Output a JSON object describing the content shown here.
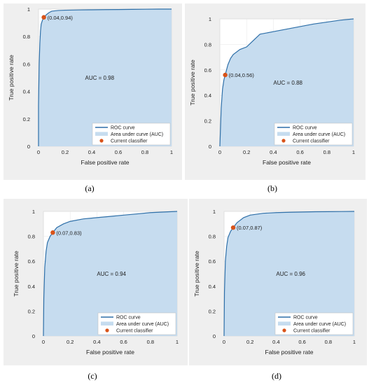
{
  "chart_data": [
    {
      "type": "area",
      "panel_label": "(a)",
      "xlabel": "False positive rate",
      "ylabel": "True positive rate",
      "xlim": [
        0,
        1
      ],
      "ylim": [
        0,
        1
      ],
      "xticks": [
        "0",
        "0.2",
        "0.4",
        "0.6",
        "0.8",
        "1"
      ],
      "yticks": [
        "0",
        "0.2",
        "0.4",
        "0.6",
        "0.8",
        "1"
      ],
      "grid": true,
      "legend_placement": "bottom-right",
      "legend": [
        "ROC curve",
        "Area under curve (AUC)",
        "Current classifier"
      ],
      "auc_label": "AUC = 0.98",
      "current_classifier": {
        "x": 0.04,
        "y": 0.94,
        "label": "(0.04,0.94)"
      },
      "roc_curve": {
        "x": [
          0,
          0,
          0.005,
          0.01,
          0.015,
          0.02,
          0.03,
          0.04,
          0.06,
          0.08,
          0.1,
          0.15,
          0.2,
          0.3,
          0.4,
          0.5,
          0.6,
          0.7,
          0.8,
          0.9,
          1.0
        ],
        "y": [
          0,
          0.3,
          0.6,
          0.75,
          0.84,
          0.89,
          0.92,
          0.94,
          0.96,
          0.975,
          0.985,
          0.99,
          0.992,
          0.994,
          0.995,
          0.996,
          0.997,
          0.998,
          0.999,
          1.0,
          1.0
        ]
      }
    },
    {
      "type": "area",
      "panel_label": "(b)",
      "xlabel": "False positive rate",
      "ylabel": "True positive rate",
      "xlim": [
        0,
        1
      ],
      "ylim": [
        0,
        1
      ],
      "xticks": [
        "0",
        "0.2",
        "0.4",
        "0.6",
        "0.8",
        "1"
      ],
      "yticks": [
        "0",
        "0.2",
        "0.4",
        "0.6",
        "0.8",
        "1"
      ],
      "grid": true,
      "legend_placement": "bottom-right",
      "legend": [
        "ROC curve",
        "Area under curve (AUC)",
        "Current classifier"
      ],
      "auc_label": "AUC = 0.88",
      "current_classifier": {
        "x": 0.04,
        "y": 0.56,
        "label": "(0.04,0.56)"
      },
      "roc_curve": {
        "x": [
          0,
          0.005,
          0.01,
          0.02,
          0.03,
          0.04,
          0.06,
          0.08,
          0.1,
          0.15,
          0.2,
          0.25,
          0.3,
          0.4,
          0.5,
          0.6,
          0.7,
          0.8,
          0.9,
          1.0
        ],
        "y": [
          0,
          0.15,
          0.3,
          0.45,
          0.52,
          0.56,
          0.64,
          0.69,
          0.72,
          0.76,
          0.78,
          0.83,
          0.88,
          0.9,
          0.92,
          0.94,
          0.96,
          0.975,
          0.99,
          1.0
        ]
      }
    },
    {
      "type": "area",
      "panel_label": "(c)",
      "xlabel": "False positive rate",
      "ylabel": "True positive rate",
      "xlim": [
        0,
        1
      ],
      "ylim": [
        0,
        1
      ],
      "xticks": [
        "0",
        "0.2",
        "0.4",
        "0.6",
        "0.8",
        "1"
      ],
      "yticks": [
        "0",
        "0.2",
        "0.4",
        "0.6",
        "0.8",
        "1"
      ],
      "grid": true,
      "legend_placement": "bottom-right",
      "legend": [
        "ROC curve",
        "Area under curve (AUC)",
        "Current classifier"
      ],
      "auc_label": "AUC = 0.94",
      "current_classifier": {
        "x": 0.07,
        "y": 0.83,
        "label": "(0.07,0.83)"
      },
      "roc_curve": {
        "x": [
          0,
          0.003,
          0.01,
          0.02,
          0.03,
          0.05,
          0.07,
          0.1,
          0.15,
          0.2,
          0.3,
          0.4,
          0.5,
          0.6,
          0.7,
          0.8,
          0.9,
          1.0
        ],
        "y": [
          0,
          0.3,
          0.55,
          0.68,
          0.75,
          0.8,
          0.83,
          0.87,
          0.9,
          0.92,
          0.94,
          0.95,
          0.96,
          0.97,
          0.98,
          0.99,
          0.995,
          1.0
        ]
      }
    },
    {
      "type": "area",
      "panel_label": "(d)",
      "xlabel": "False positive rate",
      "ylabel": "True positive rate",
      "xlim": [
        0,
        1
      ],
      "ylim": [
        0,
        1
      ],
      "xticks": [
        "0",
        "0.2",
        "0.4",
        "0.6",
        "0.8",
        "1"
      ],
      "yticks": [
        "0",
        "0.2",
        "0.4",
        "0.6",
        "0.8",
        "1"
      ],
      "grid": true,
      "legend_placement": "bottom-right",
      "legend": [
        "ROC curve",
        "Area under curve (AUC)",
        "Current classifier"
      ],
      "auc_label": "AUC = 0.96",
      "current_classifier": {
        "x": 0.07,
        "y": 0.87,
        "label": "(0.07,0.87)"
      },
      "roc_curve": {
        "x": [
          0,
          0.003,
          0.01,
          0.02,
          0.03,
          0.05,
          0.07,
          0.1,
          0.15,
          0.2,
          0.3,
          0.4,
          0.5,
          0.6,
          0.7,
          0.8,
          0.9,
          1.0
        ],
        "y": [
          0,
          0.35,
          0.6,
          0.72,
          0.79,
          0.84,
          0.87,
          0.91,
          0.95,
          0.97,
          0.985,
          0.99,
          0.993,
          0.995,
          0.997,
          0.998,
          0.999,
          1.0
        ]
      }
    }
  ],
  "colors": {
    "curve": "#2e6fa8",
    "area": "#c6dcef",
    "marker": "#d95319",
    "figure_background": "#efefef"
  }
}
